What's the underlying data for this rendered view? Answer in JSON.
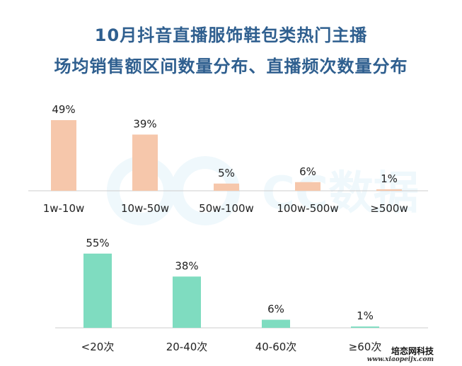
{
  "title_line1": "10月抖音直播服饰鞋包类热门主播",
  "title_line2": "场均销售额区间数量分布、直播频次数量分布",
  "watermark": "CC数据",
  "footer": {
    "site_name": "培恋网科技",
    "url": "www.xiaopeijx.com"
  },
  "colors": {
    "bar_top": "#f6c7ab",
    "bar_bottom": "#7fdcc0",
    "title": "#2f5f8f",
    "axis": "#cccccc"
  },
  "chart_data": [
    {
      "type": "bar",
      "title": "",
      "xlabel": "",
      "ylabel": "",
      "unit": "%",
      "categories": [
        "1w-10w",
        "10w-50w",
        "50w-100w",
        "100w-500w",
        "≥500w"
      ],
      "values": [
        49,
        39,
        5,
        6,
        1
      ],
      "data_labels": [
        "49%",
        "39%",
        "5%",
        "6%",
        "1%"
      ],
      "ylim": [
        0,
        50
      ],
      "grid": false
    },
    {
      "type": "bar",
      "title": "",
      "xlabel": "",
      "ylabel": "",
      "unit": "%",
      "categories": [
        "<20次",
        "20-40次",
        "40-60次",
        "≥60次"
      ],
      "values": [
        55,
        38,
        6,
        1
      ],
      "data_labels": [
        "55%",
        "38%",
        "6%",
        "1%"
      ],
      "ylim": [
        0,
        56
      ],
      "grid": false
    }
  ]
}
